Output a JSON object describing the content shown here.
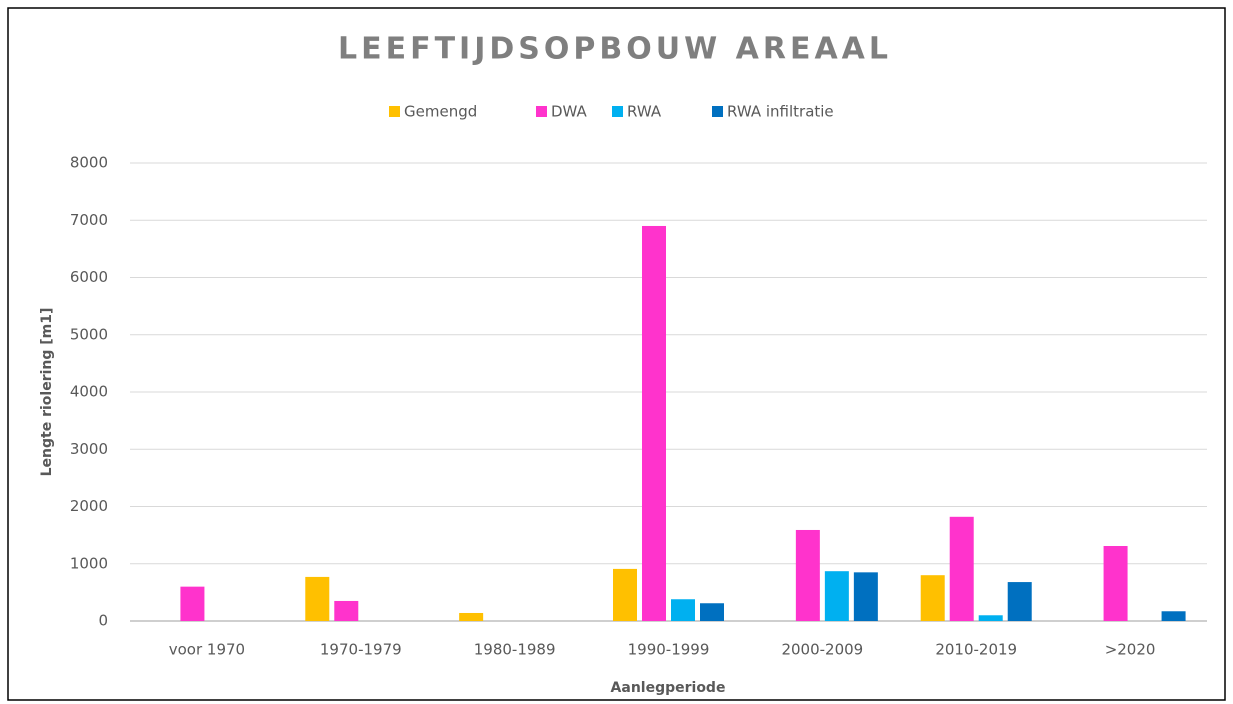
{
  "chart_data": {
    "type": "bar",
    "title": "LEEFTIJDSOPBOUW AREAAL",
    "x_label": "Aanlegperiode",
    "y_label": "Lengte riolering [m1]",
    "categories": [
      "voor 1970",
      "1970-1979",
      "1980-1989",
      "1990-1999",
      "2000-2009",
      "2010-2019",
      ">2020"
    ],
    "series": [
      {
        "name": "Gemengd",
        "color": "#FFC000",
        "values": [
          0,
          770,
          140,
          910,
          0,
          800,
          0
        ]
      },
      {
        "name": "DWA",
        "color": "#FF33CC",
        "values": [
          600,
          350,
          0,
          6900,
          1590,
          1820,
          1310
        ]
      },
      {
        "name": "RWA",
        "color": "#00B0F0",
        "values": [
          0,
          0,
          0,
          380,
          870,
          100,
          0
        ]
      },
      {
        "name": "RWA infiltratie",
        "color": "#0070C0",
        "values": [
          0,
          0,
          0,
          310,
          850,
          680,
          170
        ]
      }
    ],
    "ylim": [
      0,
      8000
    ],
    "yticks": [
      0,
      1000,
      2000,
      3000,
      4000,
      5000,
      6000,
      7000,
      8000
    ],
    "grid": true,
    "legend": "top"
  }
}
